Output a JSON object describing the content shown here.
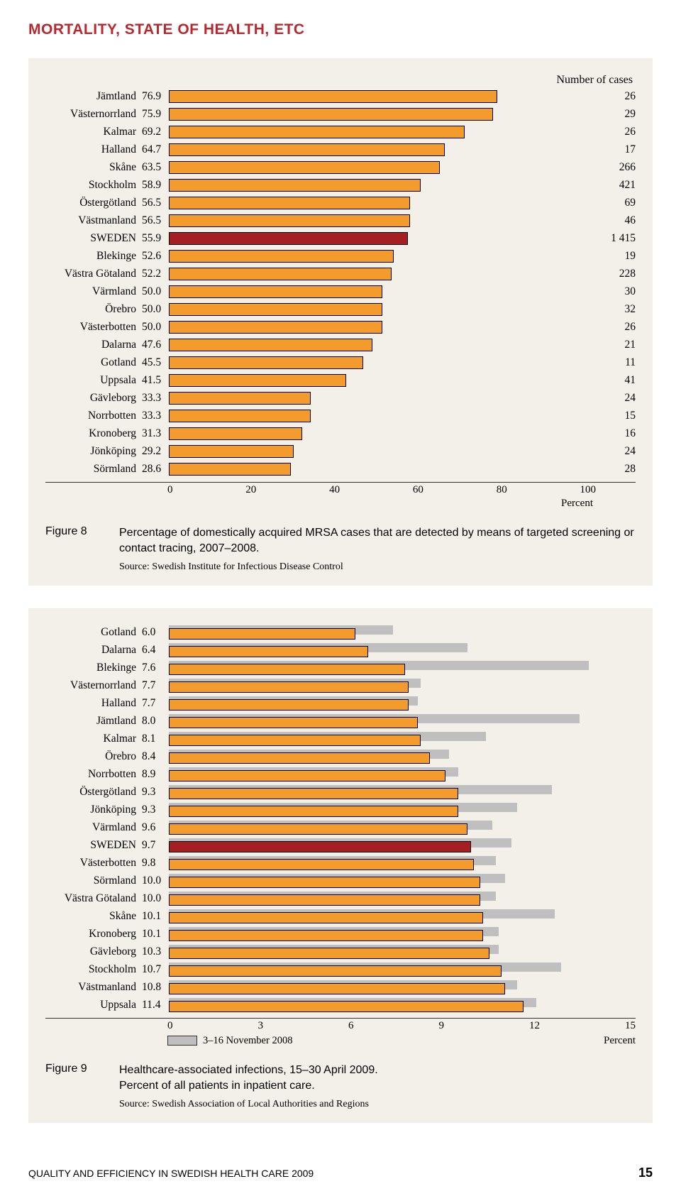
{
  "header": "MORTALITY, STATE OF HEALTH, ETC",
  "chart1": {
    "cases_header": "Number of cases",
    "xmax": 100,
    "ticks": [
      "0",
      "20",
      "40",
      "60",
      "80",
      "100"
    ],
    "axis_label": "Percent",
    "bar_default_color": "#f39c2d",
    "bar_highlight_color": "#a51e22",
    "rows": [
      {
        "label": "Jämtland",
        "value": "76.9",
        "pct": 76.9,
        "cases": "26",
        "hl": false
      },
      {
        "label": "Västernorrland",
        "value": "75.9",
        "pct": 75.9,
        "cases": "29",
        "hl": false
      },
      {
        "label": "Kalmar",
        "value": "69.2",
        "pct": 69.2,
        "cases": "26",
        "hl": false
      },
      {
        "label": "Halland",
        "value": "64.7",
        "pct": 64.7,
        "cases": "17",
        "hl": false
      },
      {
        "label": "Skåne",
        "value": "63.5",
        "pct": 63.5,
        "cases": "266",
        "hl": false
      },
      {
        "label": "Stockholm",
        "value": "58.9",
        "pct": 58.9,
        "cases": "421",
        "hl": false
      },
      {
        "label": "Östergötland",
        "value": "56.5",
        "pct": 56.5,
        "cases": "69",
        "hl": false
      },
      {
        "label": "Västmanland",
        "value": "56.5",
        "pct": 56.5,
        "cases": "46",
        "hl": false
      },
      {
        "label": "SWEDEN",
        "value": "55.9",
        "pct": 55.9,
        "cases": "1 415",
        "hl": true
      },
      {
        "label": "Blekinge",
        "value": "52.6",
        "pct": 52.6,
        "cases": "19",
        "hl": false
      },
      {
        "label": "Västra Götaland",
        "value": "52.2",
        "pct": 52.2,
        "cases": "228",
        "hl": false
      },
      {
        "label": "Värmland",
        "value": "50.0",
        "pct": 50.0,
        "cases": "30",
        "hl": false
      },
      {
        "label": "Örebro",
        "value": "50.0",
        "pct": 50.0,
        "cases": "32",
        "hl": false
      },
      {
        "label": "Västerbotten",
        "value": "50.0",
        "pct": 50.0,
        "cases": "26",
        "hl": false
      },
      {
        "label": "Dalarna",
        "value": "47.6",
        "pct": 47.6,
        "cases": "21",
        "hl": false
      },
      {
        "label": "Gotland",
        "value": "45.5",
        "pct": 45.5,
        "cases": "11",
        "hl": false
      },
      {
        "label": "Uppsala",
        "value": "41.5",
        "pct": 41.5,
        "cases": "41",
        "hl": false
      },
      {
        "label": "Gävleborg",
        "value": "33.3",
        "pct": 33.3,
        "cases": "24",
        "hl": false
      },
      {
        "label": "Norrbotten",
        "value": "33.3",
        "pct": 33.3,
        "cases": "15",
        "hl": false
      },
      {
        "label": "Kronoberg",
        "value": "31.3",
        "pct": 31.3,
        "cases": "16",
        "hl": false
      },
      {
        "label": "Jönköping",
        "value": "29.2",
        "pct": 29.2,
        "cases": "24",
        "hl": false
      },
      {
        "label": "Sörmland",
        "value": "28.6",
        "pct": 28.6,
        "cases": "28",
        "hl": false
      }
    ],
    "figure_label": "Figure 8",
    "figure_desc": "Percentage of domestically acquired MRSA cases that are detected by means of targeted screening or contact tracing, 2007–2008.",
    "figure_source": "Source: Swedish Institute for Infectious Disease Control"
  },
  "chart2": {
    "xmax": 15,
    "ticks": [
      "0",
      "3",
      "6",
      "9",
      "12",
      "15"
    ],
    "axis_label": "Percent",
    "legend_label": "3–16 November 2008",
    "bar_default_color": "#f39c2d",
    "bar_highlight_color": "#a51e22",
    "bar_bg_color": "#bfbfbf",
    "rows": [
      {
        "label": "Gotland",
        "value": "6.0",
        "pct": 6.0,
        "bg": 7.2,
        "hl": false
      },
      {
        "label": "Dalarna",
        "value": "6.4",
        "pct": 6.4,
        "bg": 9.6,
        "hl": false
      },
      {
        "label": "Blekinge",
        "value": "7.6",
        "pct": 7.6,
        "bg": 13.5,
        "hl": false
      },
      {
        "label": "Västernorrland",
        "value": "7.7",
        "pct": 7.7,
        "bg": 8.1,
        "hl": false
      },
      {
        "label": "Halland",
        "value": "7.7",
        "pct": 7.7,
        "bg": 8.0,
        "hl": false
      },
      {
        "label": "Jämtland",
        "value": "8.0",
        "pct": 8.0,
        "bg": 13.2,
        "hl": false
      },
      {
        "label": "Kalmar",
        "value": "8.1",
        "pct": 8.1,
        "bg": 10.2,
        "hl": false
      },
      {
        "label": "Örebro",
        "value": "8.4",
        "pct": 8.4,
        "bg": 9.0,
        "hl": false
      },
      {
        "label": "Norrbotten",
        "value": "8.9",
        "pct": 8.9,
        "bg": 9.3,
        "hl": false
      },
      {
        "label": "Östergötland",
        "value": "9.3",
        "pct": 9.3,
        "bg": 12.3,
        "hl": false
      },
      {
        "label": "Jönköping",
        "value": "9.3",
        "pct": 9.3,
        "bg": 11.2,
        "hl": false
      },
      {
        "label": "Värmland",
        "value": "9.6",
        "pct": 9.6,
        "bg": 10.4,
        "hl": false
      },
      {
        "label": "SWEDEN",
        "value": "9.7",
        "pct": 9.7,
        "bg": 11.0,
        "hl": true
      },
      {
        "label": "Västerbotten",
        "value": "9.8",
        "pct": 9.8,
        "bg": 10.5,
        "hl": false
      },
      {
        "label": "Sörmland",
        "value": "10.0",
        "pct": 10.0,
        "bg": 10.8,
        "hl": false
      },
      {
        "label": "Västra Götaland",
        "value": "10.0",
        "pct": 10.0,
        "bg": 10.5,
        "hl": false
      },
      {
        "label": "Skåne",
        "value": "10.1",
        "pct": 10.1,
        "bg": 12.4,
        "hl": false
      },
      {
        "label": "Kronoberg",
        "value": "10.1",
        "pct": 10.1,
        "bg": 10.6,
        "hl": false
      },
      {
        "label": "Gävleborg",
        "value": "10.3",
        "pct": 10.3,
        "bg": 10.6,
        "hl": false
      },
      {
        "label": "Stockholm",
        "value": "10.7",
        "pct": 10.7,
        "bg": 12.6,
        "hl": false
      },
      {
        "label": "Västmanland",
        "value": "10.8",
        "pct": 10.8,
        "bg": 11.2,
        "hl": false
      },
      {
        "label": "Uppsala",
        "value": "11.4",
        "pct": 11.4,
        "bg": 11.8,
        "hl": false
      }
    ],
    "figure_label": "Figure 9",
    "figure_desc_line1": "Healthcare-associated infections, 15–30 April 2009.",
    "figure_desc_line2": "Percent of all patients in inpatient care.",
    "figure_source": "Source: Swedish Association of Local Authorities and Regions"
  },
  "footer": {
    "text": "QUALITY AND EFFICIENCY IN SWEDISH HEALTH CARE 2009",
    "page": "15"
  }
}
